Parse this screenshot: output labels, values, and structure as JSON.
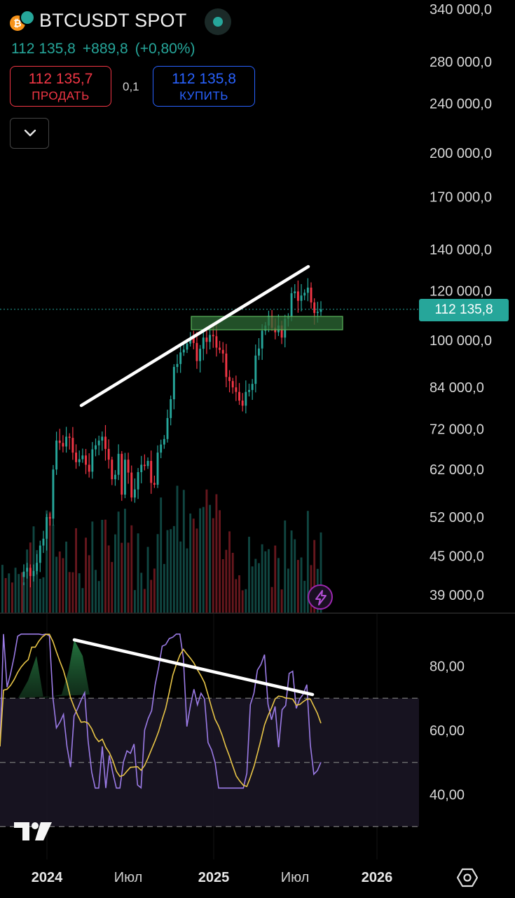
{
  "header": {
    "symbol": "BTCUSDT SPOT",
    "coin_icon": "bitcoin-icon",
    "coin_glyph": "₿",
    "status": "market-open",
    "last_price": "112 135,8",
    "change": "+889,8",
    "change_pct": "(+0,80%)"
  },
  "trade": {
    "sell_price": "112 135,7",
    "sell_label": "ПРОДАТЬ",
    "spread": "0,1",
    "buy_price": "112 135,8",
    "buy_label": "КУПИТЬ"
  },
  "price_tag": "112 135,8",
  "price_axis": {
    "ticks": [
      {
        "label": "340 000,0",
        "value": 340000
      },
      {
        "label": "280 000,0",
        "value": 280000
      },
      {
        "label": "240 000,0",
        "value": 240000
      },
      {
        "label": "200 000,0",
        "value": 200000
      },
      {
        "label": "170 000,0",
        "value": 170000
      },
      {
        "label": "140 000,0",
        "value": 140000
      },
      {
        "label": "120 000,0",
        "value": 120000
      },
      {
        "label": "100 000,0",
        "value": 100000
      },
      {
        "label": "84 000,0",
        "value": 84000
      },
      {
        "label": "72 000,0",
        "value": 72000
      },
      {
        "label": "62 000,0",
        "value": 62000
      },
      {
        "label": "52 000,0",
        "value": 52000
      },
      {
        "label": "45 000,0",
        "value": 45000
      },
      {
        "label": "39 000,0",
        "value": 39000
      }
    ],
    "scale": "log"
  },
  "rsi_axis": {
    "ticks": [
      {
        "label": "80,00",
        "value": 80
      },
      {
        "label": "60,00",
        "value": 60
      },
      {
        "label": "40,00",
        "value": 40
      }
    ]
  },
  "time_axis": {
    "ticks": [
      {
        "label": "2024",
        "bold": true
      },
      {
        "label": "Июл",
        "bold": false
      },
      {
        "label": "2025",
        "bold": true
      },
      {
        "label": "Июл",
        "bold": false
      },
      {
        "label": "2026",
        "bold": true
      }
    ]
  },
  "colors": {
    "up": "#26a69a",
    "down": "#f23645",
    "rsi": "#9b7be6",
    "rsi_ma": "#e8c547",
    "zone_fill": "#2e6b36",
    "zone_border": "#5cb85c",
    "trend": "#ffffff",
    "last_price_line": "#26a69a"
  },
  "icons": {
    "collapse": "chevron-down-icon",
    "flash": "lightning-icon",
    "logo": "tradingview-logo",
    "settings": "settings-icon"
  },
  "chart_data": {
    "type": "candlestick",
    "symbol": "BTCUSDT SPOT",
    "interval": "weekly",
    "last_price": 112135.8,
    "weekly_close": [
      42500,
      43100,
      41800,
      42600,
      43900,
      46800,
      48000,
      52000,
      51700,
      62000,
      69000,
      68400,
      67500,
      70000,
      69700,
      66000,
      63700,
      64400,
      65300,
      63100,
      61500,
      66800,
      67800,
      69000,
      70000,
      66900,
      64300,
      59800,
      60800,
      65700,
      56500,
      64300,
      61300,
      55900,
      57600,
      61400,
      63100,
      62800,
      64000,
      59000,
      58600,
      66000,
      68000,
      69400,
      75000,
      80400,
      90600,
      91600,
      95600,
      96600,
      98800,
      101000,
      99000,
      92600,
      96900,
      101000,
      99400,
      102000,
      101500,
      97300,
      96500,
      95200,
      87300,
      86000,
      84000,
      82600,
      80000,
      78500,
      82600,
      83200,
      85100,
      94500,
      97000,
      103600,
      105600,
      109500,
      104700,
      103000,
      105600,
      101000,
      108300,
      109300,
      119000,
      119800,
      115700,
      118000,
      119200,
      121500,
      115000,
      110600,
      111100,
      112135
    ]
  }
}
